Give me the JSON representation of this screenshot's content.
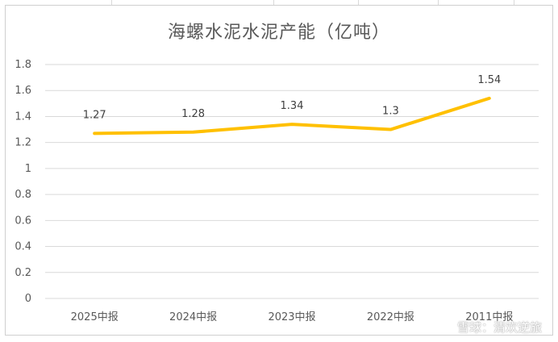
{
  "chart_data": {
    "type": "line",
    "title": "海螺水泥水泥产能（亿吨）",
    "categories": [
      "2025中报",
      "2024中报",
      "2023中报",
      "2022中报",
      "2011中报"
    ],
    "series": [
      {
        "values": [
          1.27,
          1.28,
          1.34,
          1.3,
          1.54
        ],
        "data_labels": [
          "1.27",
          "1.28",
          "1.34",
          "1.3",
          "1.54"
        ],
        "color": "#FFC000"
      }
    ],
    "y_ticks": [
      "0",
      "0.2",
      "0.4",
      "0.6",
      "0.8",
      "1",
      "1.2",
      "1.4",
      "1.6",
      "1.8"
    ],
    "ylim": [
      0,
      1.8
    ],
    "grid": true,
    "legend": "none",
    "xlabel": "",
    "ylabel": ""
  },
  "watermark": {
    "text": "雪球：清欢逆旅"
  },
  "colors": {
    "line": "#FFC000",
    "grid": "#d9d9d9",
    "text": "#595959"
  }
}
